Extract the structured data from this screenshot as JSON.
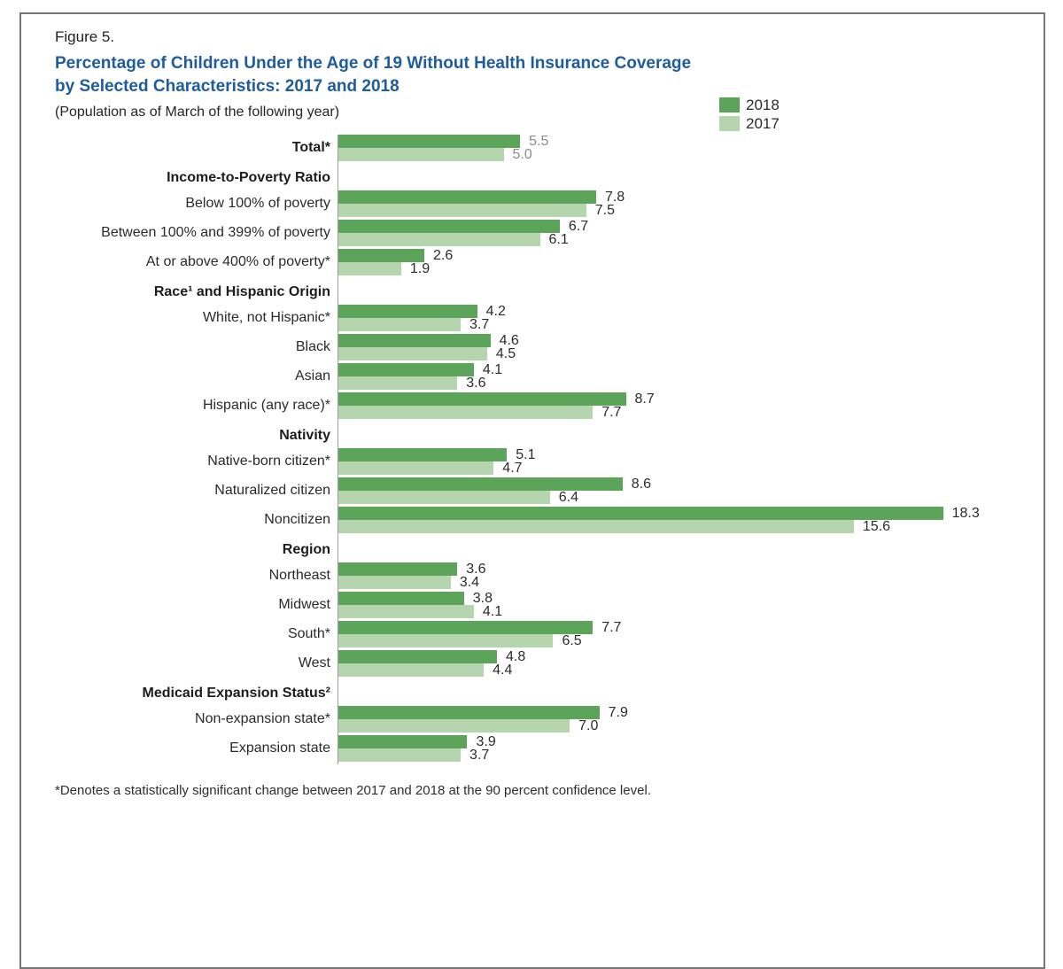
{
  "figure_label": "Figure 5.",
  "title_line1": "Percentage of Children Under the Age of 19 Without Health Insurance Coverage",
  "title_line2": "by Selected Characteristics: 2017 and 2018",
  "subtitle": "(Population as of March of the following year)",
  "footnote": "*Denotes a statistically significant change between 2017 and 2018 at the 90 percent confidence level.",
  "colors": {
    "bar_2018": "#5ba45a",
    "bar_2017": "#b5d5ae",
    "title_blue": "#1e5c9e",
    "muted_value": "#8c8c8c",
    "axis_gray": "#9e9e9e"
  },
  "legend": [
    {
      "label": "2018",
      "color": "#5ba45a"
    },
    {
      "label": "2017",
      "color": "#b5d5ae"
    }
  ],
  "chart_data": {
    "type": "bar",
    "orientation": "horizontal",
    "unit": "percent",
    "series_names": [
      "2018",
      "2017"
    ],
    "xlim": [
      0,
      19
    ],
    "grid": false,
    "legend_position": "top-right",
    "rows": [
      {
        "kind": "data",
        "label": "Total*",
        "bold": true,
        "muted_values": true,
        "values": [
          5.5,
          5.0
        ]
      },
      {
        "kind": "header",
        "label": "Income-to-Poverty Ratio"
      },
      {
        "kind": "data",
        "label": "Below 100% of poverty",
        "values": [
          7.8,
          7.5
        ]
      },
      {
        "kind": "data",
        "label": "Between 100% and 399% of poverty",
        "values": [
          6.7,
          6.1
        ]
      },
      {
        "kind": "data",
        "label": "At or above 400% of poverty*",
        "values": [
          2.6,
          1.9
        ]
      },
      {
        "kind": "header",
        "label": "Race¹ and Hispanic Origin"
      },
      {
        "kind": "data",
        "label": "White, not Hispanic*",
        "values": [
          4.2,
          3.7
        ]
      },
      {
        "kind": "data",
        "label": "Black",
        "values": [
          4.6,
          4.5
        ]
      },
      {
        "kind": "data",
        "label": "Asian",
        "values": [
          4.1,
          3.6
        ]
      },
      {
        "kind": "data",
        "label": "Hispanic (any race)*",
        "values": [
          8.7,
          7.7
        ]
      },
      {
        "kind": "header",
        "label": "Nativity"
      },
      {
        "kind": "data",
        "label": "Native-born citizen*",
        "values": [
          5.1,
          4.7
        ]
      },
      {
        "kind": "data",
        "label": "Naturalized citizen",
        "values": [
          8.6,
          6.4
        ]
      },
      {
        "kind": "data",
        "label": "Noncitizen",
        "values": [
          18.3,
          15.6
        ]
      },
      {
        "kind": "header",
        "label": "Region"
      },
      {
        "kind": "data",
        "label": "Northeast",
        "values": [
          3.6,
          3.4
        ]
      },
      {
        "kind": "data",
        "label": "Midwest",
        "values": [
          3.8,
          4.1
        ]
      },
      {
        "kind": "data",
        "label": "South*",
        "values": [
          7.7,
          6.5
        ]
      },
      {
        "kind": "data",
        "label": "West",
        "values": [
          4.8,
          4.4
        ]
      },
      {
        "kind": "header",
        "label": "Medicaid Expansion Status²"
      },
      {
        "kind": "data",
        "label": "Non-expansion state*",
        "values": [
          7.9,
          7.0
        ]
      },
      {
        "kind": "data",
        "label": "Expansion state",
        "values": [
          3.9,
          3.7
        ]
      }
    ]
  }
}
